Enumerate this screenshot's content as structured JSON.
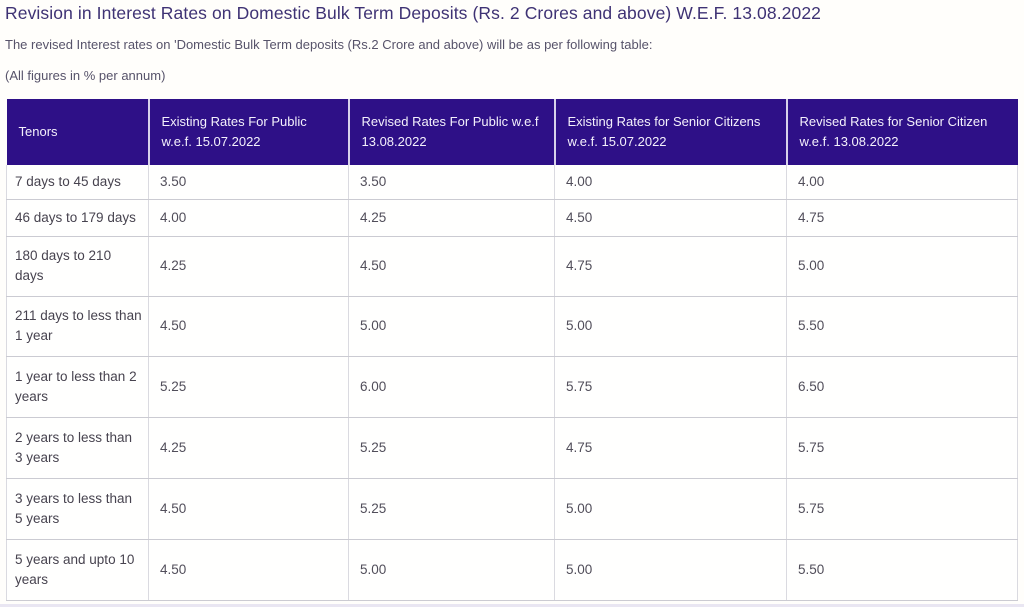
{
  "page": {
    "title": "Revision in Interest Rates on Domestic Bulk Term Deposits (Rs. 2 Crores and above) W.E.F. 13.08.2022",
    "intro": "The revised Interest rates on 'Domestic Bulk Term deposits (Rs.2 Crore and above) will be as per following table:",
    "units_note": "(All figures in % per annum)"
  },
  "colors": {
    "title_text": "#3e3274",
    "header_bg": "#2e1087",
    "header_text": "#f4f1fc",
    "body_text": "#514e5a",
    "row_border": "#cbcbd2"
  },
  "chart_data": {
    "type": "table",
    "title": "Revision in Interest Rates on Domestic Bulk Term Deposits (Rs. 2 Crores and above) W.E.F. 13.08.2022",
    "columns": [
      "Tenors",
      "Existing Rates For Public w.e.f. 15.07.2022",
      "Revised Rates For Public w.e.f 13.08.2022",
      "Existing Rates for Senior Citizens w.e.f. 15.07.2022",
      "Revised Rates for Senior Citizen w.e.f. 13.08.2022"
    ],
    "rows": [
      {
        "tenor": "7 days to 45 days",
        "values": [
          "3.50",
          "3.50",
          "4.00",
          "4.00"
        ]
      },
      {
        "tenor": "46 days to 179 days",
        "values": [
          "4.00",
          "4.25",
          "4.50",
          "4.75"
        ]
      },
      {
        "tenor": "180 days to 210 days",
        "values": [
          "4.25",
          "4.50",
          "4.75",
          "5.00"
        ]
      },
      {
        "tenor": "211 days to less than 1 year",
        "values": [
          "4.50",
          "5.00",
          "5.00",
          "5.50"
        ]
      },
      {
        "tenor": "1 year to less than 2 years",
        "values": [
          "5.25",
          "6.00",
          "5.75",
          "6.50"
        ]
      },
      {
        "tenor": "2 years to less than 3 years",
        "values": [
          "4.25",
          "5.25",
          "4.75",
          "5.75"
        ]
      },
      {
        "tenor": "3 years to less than 5 years",
        "values": [
          "4.50",
          "5.25",
          "5.00",
          "5.75"
        ]
      },
      {
        "tenor": "5 years and upto 10 years",
        "values": [
          "4.50",
          "5.00",
          "5.00",
          "5.50"
        ]
      }
    ]
  }
}
